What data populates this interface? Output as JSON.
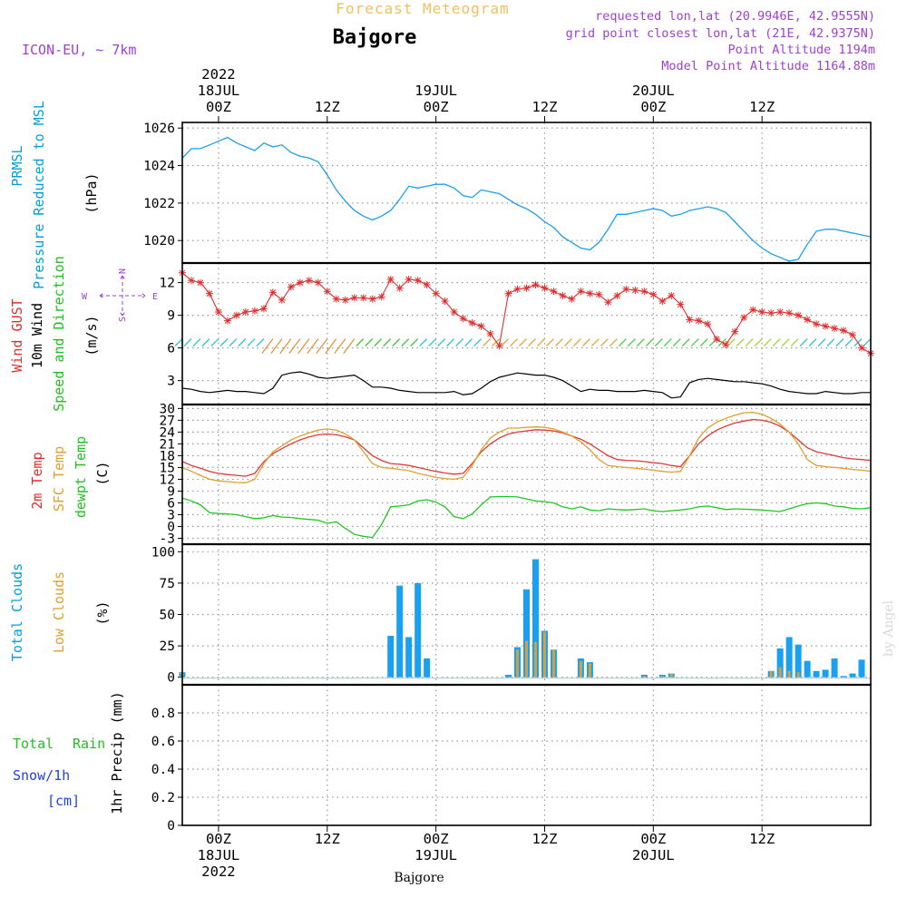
{
  "header": {
    "top_title": "Forecast Meteogram",
    "location": "Bajgore",
    "model": "ICON-EU, ~ 7km",
    "requested": "requested lon,lat (20.9946E, 42.9555N)",
    "gridpoint": "grid point closest lon,lat (21E, 42.9375N)",
    "point_alt": "Point Altitude 1194m",
    "model_alt": "Model Point Altitude 1164.88m",
    "footer_location": "Bajgore",
    "watermark": "by Angel",
    "colors": {
      "title": "#f0c060",
      "purple": "#a040d0",
      "cyan": "#00a0e0",
      "red": "#e03030",
      "green": "#20c020",
      "orange": "#e0a030",
      "blue": "#2040e0"
    }
  },
  "time_axis": {
    "hour_start": -4,
    "hour_end": 72,
    "top_ticks": [
      {
        "h": 0,
        "lines": [
          "2022",
          "18JUL",
          "00Z"
        ]
      },
      {
        "h": 12,
        "lines": [
          "12Z"
        ]
      },
      {
        "h": 24,
        "lines": [
          "19JUL",
          "00Z"
        ]
      },
      {
        "h": 36,
        "lines": [
          "12Z"
        ]
      },
      {
        "h": 48,
        "lines": [
          "20JUL",
          "00Z"
        ]
      },
      {
        "h": 60,
        "lines": [
          "12Z"
        ]
      }
    ],
    "bottom_ticks": [
      {
        "h": 0,
        "lines": [
          "00Z",
          "18JUL",
          "2022"
        ]
      },
      {
        "h": 12,
        "lines": [
          "12Z"
        ]
      },
      {
        "h": 24,
        "lines": [
          "00Z",
          "19JUL"
        ]
      },
      {
        "h": 36,
        "lines": [
          "12Z"
        ]
      },
      {
        "h": 48,
        "lines": [
          "00Z",
          "20JUL"
        ]
      },
      {
        "h": 60,
        "lines": [
          "12Z"
        ]
      }
    ]
  },
  "chart_data": [
    {
      "type": "line",
      "panel": "pressure",
      "labels": [
        "PRMSL",
        "Pressure Reduced to MSL",
        "(hPa)"
      ],
      "ylim": [
        1018.8,
        1026.3
      ],
      "yticks": [
        1020,
        1022,
        1024,
        1026
      ],
      "x": [
        -4,
        -3,
        -2,
        -1,
        0,
        1,
        2,
        3,
        4,
        5,
        6,
        7,
        8,
        9,
        10,
        11,
        12,
        13,
        14,
        15,
        16,
        17,
        18,
        19,
        20,
        21,
        22,
        23,
        24,
        25,
        26,
        27,
        28,
        29,
        30,
        31,
        32,
        33,
        34,
        35,
        36,
        37,
        38,
        39,
        40,
        41,
        42,
        43,
        44,
        45,
        46,
        47,
        48,
        49,
        50,
        51,
        52,
        53,
        54,
        55,
        56,
        57,
        58,
        59,
        60,
        61,
        62,
        63,
        64,
        65,
        66,
        67,
        68,
        69,
        70,
        71,
        72
      ],
      "series": [
        {
          "values": [
            1024.4,
            1024.9,
            1024.9,
            1025.1,
            1025.3,
            1025.5,
            1025.2,
            1025.0,
            1024.8,
            1025.2,
            1025.0,
            1025.1,
            1024.7,
            1024.5,
            1024.4,
            1024.2,
            1023.5,
            1022.7,
            1022.1,
            1021.6,
            1021.3,
            1021.1,
            1021.3,
            1021.6,
            1022.2,
            1022.9,
            1022.8,
            1022.9,
            1023.0,
            1023.0,
            1022.8,
            1022.4,
            1022.3,
            1022.7,
            1022.6,
            1022.5,
            1022.2,
            1021.9,
            1021.7,
            1021.4,
            1021.0,
            1020.7,
            1020.2,
            1019.9,
            1019.6,
            1019.5,
            1019.9,
            1020.6,
            1021.4,
            1021.4,
            1021.5,
            1021.6,
            1021.7,
            1021.6,
            1021.3,
            1021.4,
            1021.6,
            1021.7,
            1021.8,
            1021.7,
            1021.5,
            1021.0,
            1020.5,
            1020.0,
            1019.6,
            1019.3,
            1019.1,
            1018.9,
            1019.0,
            1019.8,
            1020.5,
            1020.6,
            1020.6,
            1020.5,
            1020.4,
            1020.3,
            1020.2
          ]
        }
      ]
    },
    {
      "type": "line",
      "panel": "wind",
      "labels": [
        "Wind GUST",
        "10m Wind",
        "Speed and Direction",
        "(m/s)"
      ],
      "compass": {
        "n": "N",
        "s": "S",
        "w": "W",
        "e": "E"
      },
      "ylim": [
        0.8,
        13.8
      ],
      "yticks": [
        3,
        6,
        9,
        12
      ],
      "x": [
        -4,
        -3,
        -2,
        -1,
        0,
        1,
        2,
        3,
        4,
        5,
        6,
        7,
        8,
        9,
        10,
        11,
        12,
        13,
        14,
        15,
        16,
        17,
        18,
        19,
        20,
        21,
        22,
        23,
        24,
        25,
        26,
        27,
        28,
        29,
        30,
        31,
        32,
        33,
        34,
        35,
        36,
        37,
        38,
        39,
        40,
        41,
        42,
        43,
        44,
        45,
        46,
        47,
        48,
        49,
        50,
        51,
        52,
        53,
        54,
        55,
        56,
        57,
        58,
        59,
        60,
        61,
        62,
        63,
        64,
        65,
        66,
        67,
        68,
        69,
        70,
        71,
        72
      ],
      "series": [
        {
          "values": [
            12.9,
            12.2,
            12.0,
            11.0,
            9.3,
            8.5,
            9.0,
            9.3,
            9.4,
            9.6,
            11.1,
            10.4,
            11.6,
            12.0,
            12.2,
            12.0,
            11.2,
            10.5,
            10.4,
            10.6,
            10.6,
            10.5,
            10.7,
            12.3,
            11.5,
            12.3,
            12.2,
            11.8,
            11.0,
            10.3,
            9.3,
            8.7,
            8.3,
            8.0,
            7.3,
            6.2,
            11.0,
            11.4,
            11.5,
            11.8,
            11.5,
            11.2,
            10.8,
            10.5,
            11.2,
            11.0,
            10.9,
            10.2,
            10.8,
            11.4,
            11.3,
            11.2,
            10.9,
            10.3,
            10.8,
            10.0,
            8.6,
            8.5,
            8.2,
            6.8,
            6.3,
            7.5,
            8.8,
            9.5,
            9.3,
            9.2,
            9.3,
            9.2,
            9.0,
            8.6,
            8.2,
            8.0,
            7.8,
            7.6,
            7.2,
            6.0,
            5.5
          ]
        },
        {
          "values": [
            2.3,
            2.2,
            2.0,
            1.9,
            2.0,
            2.1,
            2.0,
            2.0,
            1.9,
            1.8,
            2.3,
            3.5,
            3.7,
            3.8,
            3.6,
            3.3,
            3.2,
            3.3,
            3.4,
            3.5,
            3.0,
            2.4,
            2.4,
            2.3,
            2.1,
            2.0,
            1.9,
            1.9,
            1.9,
            1.9,
            2.0,
            1.7,
            1.8,
            2.3,
            2.9,
            3.3,
            3.5,
            3.7,
            3.6,
            3.5,
            3.5,
            3.3,
            3.0,
            2.5,
            2.0,
            2.2,
            2.1,
            2.1,
            2.0,
            2.0,
            2.0,
            2.1,
            2.0,
            1.9,
            1.4,
            1.5,
            2.8,
            3.1,
            3.2,
            3.1,
            3.0,
            2.9,
            2.9,
            2.8,
            2.7,
            2.5,
            2.2,
            2.0,
            1.9,
            1.8,
            1.8,
            2.0,
            1.9,
            1.8,
            1.8,
            1.9,
            1.9
          ]
        }
      ]
    },
    {
      "type": "line",
      "panel": "temperature",
      "labels": [
        "2m Temp",
        "SFC Temp",
        "dewpt Temp",
        "(C)"
      ],
      "ylim": [
        -4.5,
        31
      ],
      "yticks": [
        -3,
        0,
        3,
        6,
        9,
        12,
        15,
        18,
        21,
        24,
        27,
        30
      ],
      "x": [
        -4,
        -3,
        -2,
        -1,
        0,
        1,
        2,
        3,
        4,
        5,
        6,
        7,
        8,
        9,
        10,
        11,
        12,
        13,
        14,
        15,
        16,
        17,
        18,
        19,
        20,
        21,
        22,
        23,
        24,
        25,
        26,
        27,
        28,
        29,
        30,
        31,
        32,
        33,
        34,
        35,
        36,
        37,
        38,
        39,
        40,
        41,
        42,
        43,
        44,
        45,
        46,
        47,
        48,
        49,
        50,
        51,
        52,
        53,
        54,
        55,
        56,
        57,
        58,
        59,
        60,
        61,
        62,
        63,
        64,
        65,
        66,
        67,
        68,
        69,
        70,
        71,
        72
      ],
      "series": [
        {
          "values": [
            16.5,
            15.5,
            14.8,
            14.0,
            13.5,
            13.2,
            13.0,
            12.8,
            13.5,
            16.5,
            18.5,
            19.8,
            21.0,
            22.0,
            22.8,
            23.3,
            23.5,
            23.3,
            22.8,
            22.0,
            20.0,
            18.0,
            16.8,
            16.0,
            15.8,
            15.5,
            15.0,
            14.5,
            14.0,
            13.6,
            13.3,
            13.5,
            16.0,
            19.0,
            21.0,
            22.5,
            23.5,
            24.0,
            24.3,
            24.6,
            24.5,
            24.3,
            23.8,
            23.0,
            22.2,
            21.0,
            19.5,
            18.0,
            17.0,
            16.8,
            16.7,
            16.5,
            16.2,
            16.0,
            15.5,
            15.2,
            18.0,
            21.0,
            23.0,
            24.5,
            25.5,
            26.3,
            26.8,
            27.2,
            27.0,
            26.5,
            25.5,
            24.0,
            22.0,
            20.0,
            19.0,
            18.5,
            18.0,
            17.5,
            17.2,
            17.0,
            16.8
          ]
        },
        {
          "values": [
            15.0,
            14.0,
            13.0,
            12.0,
            11.6,
            11.4,
            11.2,
            11.1,
            12.0,
            16.0,
            19.0,
            20.5,
            22.0,
            23.0,
            23.8,
            24.5,
            24.8,
            24.5,
            23.5,
            22.0,
            19.0,
            16.0,
            15.0,
            14.8,
            14.5,
            14.2,
            13.5,
            13.0,
            12.5,
            12.2,
            12.0,
            12.5,
            15.5,
            19.5,
            22.5,
            24.0,
            25.0,
            25.0,
            25.2,
            25.3,
            25.2,
            24.8,
            24.0,
            23.0,
            21.5,
            19.5,
            17.0,
            15.5,
            15.2,
            15.0,
            14.8,
            14.6,
            14.3,
            14.0,
            13.8,
            14.0,
            18.0,
            22.5,
            25.0,
            26.5,
            27.5,
            28.3,
            28.9,
            29.0,
            28.5,
            27.5,
            26.0,
            24.0,
            21.0,
            17.0,
            15.5,
            15.2,
            15.0,
            14.8,
            14.5,
            14.3,
            14.0
          ]
        },
        {
          "values": [
            7.2,
            6.5,
            5.5,
            3.5,
            3.3,
            3.2,
            3.0,
            2.5,
            2.0,
            2.2,
            2.8,
            2.4,
            2.3,
            2.0,
            1.8,
            1.6,
            0.8,
            1.2,
            -0.5,
            -2.0,
            -2.5,
            -2.8,
            0.5,
            5.0,
            5.2,
            5.5,
            6.5,
            6.8,
            6.2,
            5.0,
            2.5,
            2.0,
            3.2,
            5.5,
            7.5,
            7.6,
            7.6,
            7.5,
            7.0,
            6.5,
            6.3,
            6.0,
            5.0,
            4.5,
            5.0,
            4.2,
            4.0,
            4.5,
            4.3,
            4.2,
            4.3,
            4.5,
            4.0,
            3.8,
            4.0,
            4.2,
            4.5,
            5.0,
            5.2,
            4.8,
            4.3,
            4.5,
            4.4,
            4.3,
            4.2,
            4.0,
            3.8,
            4.5,
            5.2,
            5.8,
            6.0,
            5.8,
            5.2,
            5.0,
            4.6,
            4.5,
            4.8
          ]
        }
      ]
    },
    {
      "type": "bar",
      "panel": "clouds",
      "labels": [
        "Total Clouds",
        "Low Clouds",
        "(%)"
      ],
      "ylim": [
        -6,
        106
      ],
      "yticks": [
        0,
        25,
        50,
        75,
        100
      ],
      "x": [
        -4,
        -3,
        -2,
        -1,
        0,
        1,
        2,
        3,
        4,
        5,
        6,
        7,
        8,
        9,
        10,
        11,
        12,
        13,
        14,
        15,
        16,
        17,
        18,
        19,
        20,
        21,
        22,
        23,
        24,
        25,
        26,
        27,
        28,
        29,
        30,
        31,
        32,
        33,
        34,
        35,
        36,
        37,
        38,
        39,
        40,
        41,
        42,
        43,
        44,
        45,
        46,
        47,
        48,
        49,
        50,
        51,
        52,
        53,
        54,
        55,
        56,
        57,
        58,
        59,
        60,
        61,
        62,
        63,
        64,
        65,
        66,
        67,
        68,
        69,
        70,
        71,
        72
      ],
      "series": [
        {
          "values": [
            4,
            0,
            0,
            0,
            0,
            0,
            0,
            0,
            0,
            0,
            0,
            0,
            0,
            0,
            0,
            0,
            0,
            0,
            0,
            0,
            0,
            0,
            0,
            33,
            73,
            32,
            75,
            15,
            0,
            0,
            0,
            0,
            0,
            0,
            0,
            0,
            2,
            24,
            70,
            94,
            37,
            22,
            0,
            0,
            15,
            12,
            0,
            0,
            0,
            0,
            0,
            2,
            0,
            2,
            3,
            0,
            0,
            0,
            0,
            0,
            0,
            0,
            0,
            0,
            0,
            5,
            23,
            32,
            26,
            13,
            5,
            6,
            15,
            1,
            3,
            14,
            0
          ]
        },
        {
          "values": [
            4,
            0,
            0,
            0,
            0,
            0,
            0,
            0,
            0,
            0,
            0,
            0,
            0,
            0,
            0,
            0,
            0,
            0,
            0,
            0,
            0,
            0,
            0,
            0,
            0,
            0,
            0,
            0,
            0,
            0,
            0,
            0,
            0,
            0,
            0,
            0,
            0,
            22,
            29,
            28,
            36,
            22,
            0,
            0,
            13,
            11,
            0,
            0,
            0,
            0,
            0,
            1,
            0,
            1,
            3,
            0,
            0,
            0,
            0,
            0,
            0,
            0,
            0,
            0,
            0,
            5,
            8,
            5,
            4,
            0,
            0,
            0,
            0,
            0,
            0,
            0,
            0
          ]
        }
      ]
    },
    {
      "type": "bar",
      "panel": "precip",
      "labels": [
        "Total",
        "Rain",
        "Snow/1h",
        "[cm]",
        "1hr Precip (mm)"
      ],
      "ylim": [
        0,
        1.0
      ],
      "yticks": [
        0,
        0.2,
        0.4,
        0.6,
        0.8
      ],
      "ytick_labels": [
        "0",
        "0.2",
        "0.4",
        "0.6",
        "0.8"
      ],
      "x": [],
      "series": [
        {
          "values": []
        }
      ]
    }
  ]
}
